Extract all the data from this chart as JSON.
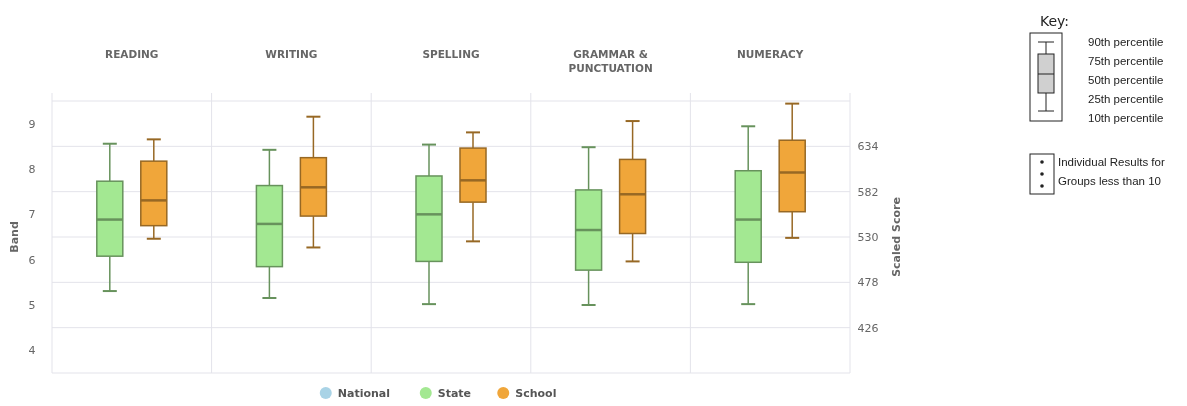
{
  "chart_data": {
    "type": "box",
    "categories": [
      "READING",
      "WRITING",
      "SPELLING",
      "GRAMMAR & PUNCTUATION",
      "NUMERACY"
    ],
    "ylabel": "Band",
    "y2label": "Scaled Score",
    "ylim": [
      3.5,
      9.5
    ],
    "yticks": [
      4,
      5,
      6,
      7,
      8,
      9
    ],
    "y2lim": [
      374,
      686
    ],
    "y2ticks": [
      426,
      478,
      530,
      582,
      634
    ],
    "grid": true,
    "legend": "bottom",
    "series": [
      {
        "name": "National",
        "color": "#a9d3e6",
        "boxes": [
          null,
          null,
          null,
          null,
          null
        ]
      },
      {
        "name": "State",
        "color": "#a3e892",
        "axis": "y2",
        "boxes": [
          {
            "low": 468,
            "q1": 508,
            "median": 550,
            "q3": 594,
            "high": 637
          },
          {
            "low": 460,
            "q1": 496,
            "median": 545,
            "q3": 589,
            "high": 630
          },
          {
            "low": 453,
            "q1": 502,
            "median": 556,
            "q3": 600,
            "high": 636
          },
          {
            "low": 452,
            "q1": 492,
            "median": 538,
            "q3": 584,
            "high": 633
          },
          {
            "low": 453,
            "q1": 501,
            "median": 550,
            "q3": 606,
            "high": 657
          }
        ]
      },
      {
        "name": "School",
        "color": "#f0a63a",
        "axis": "y2",
        "boxes": [
          {
            "low": 528,
            "q1": 543,
            "median": 572,
            "q3": 617,
            "high": 642
          },
          {
            "low": 518,
            "q1": 554,
            "median": 587,
            "q3": 621,
            "high": 668
          },
          {
            "low": 525,
            "q1": 570,
            "median": 595,
            "q3": 632,
            "high": 650
          },
          {
            "low": 502,
            "q1": 534,
            "median": 579,
            "q3": 619,
            "high": 663
          },
          {
            "low": 529,
            "q1": 559,
            "median": 604,
            "q3": 641,
            "high": 683
          }
        ]
      }
    ],
    "annotations": [
      "Key:",
      "90th percentile",
      "75th percentile",
      "50th percentile",
      "25th percentile",
      "10th percentile",
      "Individual Results for Groups less than 10"
    ]
  }
}
